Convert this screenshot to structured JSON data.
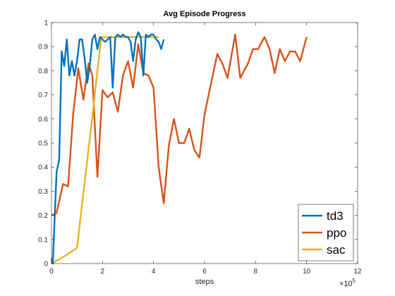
{
  "chart_data": {
    "type": "line",
    "title": "Avg Episode Progress",
    "xlabel": "steps",
    "ylabel": "",
    "x_exponent_label": "×10",
    "x_exponent_power": "5",
    "xlim": [
      0,
      12
    ],
    "ylim": [
      0,
      1
    ],
    "x_ticks": [
      "0",
      "2",
      "4",
      "6",
      "8",
      "10",
      "12"
    ],
    "y_ticks": [
      "0",
      "0.1",
      "0.2",
      "0.3",
      "0.4",
      "0.5",
      "0.6",
      "0.7",
      "0.8",
      "0.9",
      "1"
    ],
    "grid": false,
    "legend_position": "bottom-right",
    "series": [
      {
        "name": "ppo",
        "color": "#D95319",
        "points": [
          [
            0,
            0.2
          ],
          [
            0.2,
            0.21
          ],
          [
            0.45,
            0.33
          ],
          [
            0.65,
            0.32
          ],
          [
            0.85,
            0.62
          ],
          [
            1.05,
            0.81
          ],
          [
            1.25,
            0.68
          ],
          [
            1.45,
            0.83
          ],
          [
            1.6,
            0.78
          ],
          [
            1.8,
            0.36
          ],
          [
            2.0,
            0.72
          ],
          [
            2.2,
            0.69
          ],
          [
            2.4,
            0.71
          ],
          [
            2.6,
            0.63
          ],
          [
            2.8,
            0.78
          ],
          [
            3.0,
            0.84
          ],
          [
            3.2,
            0.73
          ],
          [
            3.4,
            0.91
          ],
          [
            3.6,
            0.79
          ],
          [
            3.8,
            0.78
          ],
          [
            4.0,
            0.73
          ],
          [
            4.2,
            0.4
          ],
          [
            4.4,
            0.25
          ],
          [
            4.6,
            0.49
          ],
          [
            4.8,
            0.6
          ],
          [
            5.0,
            0.5
          ],
          [
            5.2,
            0.5
          ],
          [
            5.4,
            0.56
          ],
          [
            5.6,
            0.47
          ],
          [
            5.8,
            0.44
          ],
          [
            6.0,
            0.62
          ],
          [
            6.2,
            0.72
          ],
          [
            6.5,
            0.87
          ],
          [
            6.7,
            0.83
          ],
          [
            6.9,
            0.77
          ],
          [
            7.2,
            0.95
          ],
          [
            7.4,
            0.77
          ],
          [
            7.7,
            0.83
          ],
          [
            7.9,
            0.89
          ],
          [
            8.1,
            0.89
          ],
          [
            8.35,
            0.94
          ],
          [
            8.55,
            0.89
          ],
          [
            8.75,
            0.79
          ],
          [
            8.95,
            0.89
          ],
          [
            9.15,
            0.84
          ],
          [
            9.35,
            0.88
          ],
          [
            9.55,
            0.88
          ],
          [
            9.75,
            0.84
          ],
          [
            10.0,
            0.94
          ]
        ]
      },
      {
        "name": "sac",
        "color": "#EDB120",
        "points": [
          [
            0,
            0.0
          ],
          [
            0.5,
            0.03
          ],
          [
            1.0,
            0.065
          ],
          [
            1.6,
            0.61
          ],
          [
            1.95,
            0.94
          ],
          [
            2.5,
            0.94
          ],
          [
            3.0,
            0.94
          ],
          [
            3.5,
            0.94
          ],
          [
            4.0,
            0.94
          ],
          [
            4.2,
            0.94
          ]
        ]
      },
      {
        "name": "td3",
        "color": "#0072BD",
        "points": [
          [
            0,
            0.02
          ],
          [
            0.05,
            0.0
          ],
          [
            0.2,
            0.38
          ],
          [
            0.3,
            0.43
          ],
          [
            0.4,
            0.88
          ],
          [
            0.5,
            0.82
          ],
          [
            0.6,
            0.93
          ],
          [
            0.7,
            0.78
          ],
          [
            0.8,
            0.84
          ],
          [
            0.9,
            0.78
          ],
          [
            1.0,
            0.84
          ],
          [
            1.1,
            0.93
          ],
          [
            1.2,
            0.93
          ],
          [
            1.3,
            0.85
          ],
          [
            1.4,
            0.75
          ],
          [
            1.5,
            0.82
          ],
          [
            1.6,
            0.93
          ],
          [
            1.7,
            0.95
          ],
          [
            1.8,
            0.89
          ],
          [
            1.9,
            0.94
          ],
          [
            2.0,
            0.93
          ],
          [
            2.1,
            0.92
          ],
          [
            2.2,
            0.93
          ],
          [
            2.3,
            0.94
          ],
          [
            2.4,
            0.73
          ],
          [
            2.5,
            0.94
          ],
          [
            2.6,
            0.95
          ],
          [
            2.7,
            0.94
          ],
          [
            2.8,
            0.95
          ],
          [
            2.9,
            0.94
          ],
          [
            3.0,
            0.94
          ],
          [
            3.1,
            0.92
          ],
          [
            3.2,
            0.84
          ],
          [
            3.3,
            0.93
          ],
          [
            3.4,
            0.96
          ],
          [
            3.5,
            0.94
          ],
          [
            3.6,
            0.78
          ],
          [
            3.7,
            0.95
          ],
          [
            3.8,
            0.94
          ],
          [
            3.9,
            0.95
          ],
          [
            4.0,
            0.95
          ],
          [
            4.1,
            0.93
          ],
          [
            4.2,
            0.92
          ],
          [
            4.3,
            0.89
          ],
          [
            4.4,
            0.93
          ]
        ]
      }
    ],
    "legend_order": [
      "td3",
      "ppo",
      "sac"
    ]
  }
}
